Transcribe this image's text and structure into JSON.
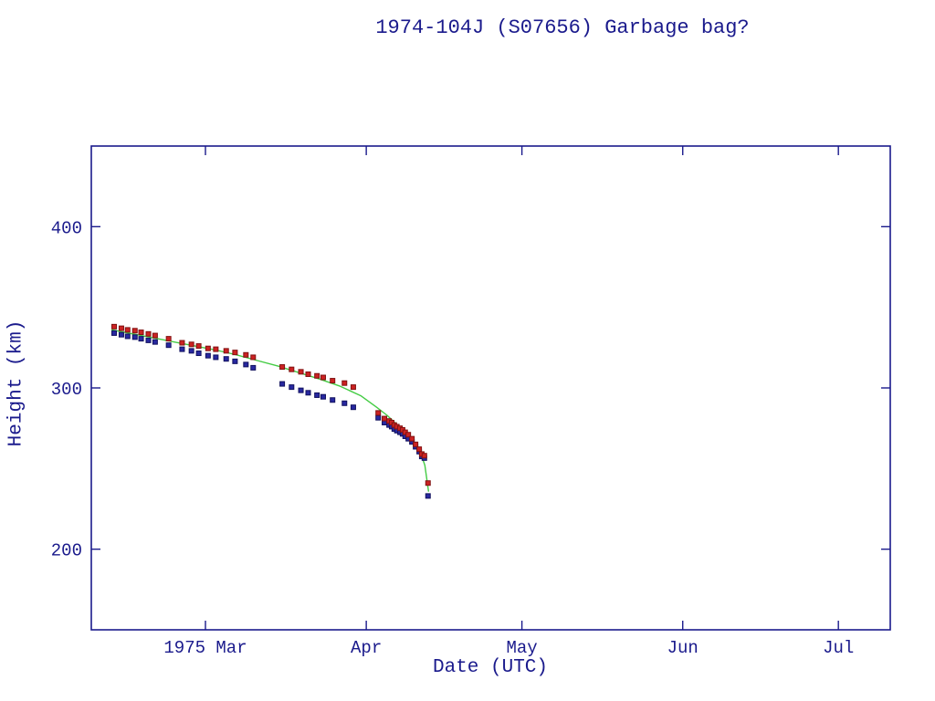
{
  "chart_data": {
    "type": "scatter",
    "title": "1974-104J (S07656) Garbage bag?",
    "xlabel": "Date (UTC)",
    "ylabel": "Height (km)",
    "x_unit": "days since 1975-02-07",
    "x_domain": [
      0,
      154
    ],
    "y_domain": [
      150,
      450
    ],
    "grid": false,
    "legend": "none",
    "x_ticks": [
      {
        "day": 22,
        "label": "1975 Mar"
      },
      {
        "day": 53,
        "label": "Apr"
      },
      {
        "day": 83,
        "label": "May"
      },
      {
        "day": 114,
        "label": "Jun"
      },
      {
        "day": 144,
        "label": "Jul"
      }
    ],
    "y_ticks": [
      {
        "value": 200,
        "label": "200"
      },
      {
        "value": 300,
        "label": "300"
      },
      {
        "value": 400,
        "label": "400"
      }
    ],
    "colors": {
      "axis_and_text": "#1a1a8c",
      "background": "#ffffff",
      "apogee": "#cc2222",
      "perigee": "#2828a0",
      "fit_line": "#44cc44"
    },
    "series": [
      {
        "name": "fit-line",
        "type": "line",
        "color": "#44cc44",
        "points": [
          [
            4.0,
            336
          ],
          [
            8,
            333.5
          ],
          [
            12,
            331
          ],
          [
            16,
            328.5
          ],
          [
            20,
            326
          ],
          [
            24,
            323.5
          ],
          [
            28,
            320.5
          ],
          [
            32,
            317
          ],
          [
            36,
            313.5
          ],
          [
            40,
            309.5
          ],
          [
            44,
            305.5
          ],
          [
            48,
            301
          ],
          [
            52,
            295
          ],
          [
            55,
            288
          ],
          [
            57,
            283
          ],
          [
            58.5,
            278.5
          ],
          [
            60,
            274
          ],
          [
            61.5,
            269
          ],
          [
            62.5,
            265
          ],
          [
            63.5,
            259.5
          ],
          [
            64.3,
            252
          ],
          [
            65.0,
            236
          ]
        ]
      },
      {
        "name": "perigee-height",
        "type": "scatter",
        "marker": "square",
        "color": "#2828a0",
        "edge_color": "#11115e",
        "points": [
          [
            4.4,
            334
          ],
          [
            5.8,
            333
          ],
          [
            7.0,
            332
          ],
          [
            8.4,
            331.5
          ],
          [
            9.6,
            330.5
          ],
          [
            11.0,
            329.5
          ],
          [
            12.3,
            328.5
          ],
          [
            14.9,
            326.5
          ],
          [
            17.5,
            324
          ],
          [
            19.3,
            323
          ],
          [
            20.7,
            321.5
          ],
          [
            22.5,
            320
          ],
          [
            24.0,
            319
          ],
          [
            26.0,
            318
          ],
          [
            27.7,
            316.5
          ],
          [
            29.8,
            314.5
          ],
          [
            31.2,
            312.5
          ],
          [
            36.8,
            302.5
          ],
          [
            38.6,
            300.5
          ],
          [
            40.4,
            298.5
          ],
          [
            41.8,
            297
          ],
          [
            43.5,
            295.5
          ],
          [
            44.7,
            294.5
          ],
          [
            46.5,
            292.5
          ],
          [
            48.8,
            290.5
          ],
          [
            50.5,
            288
          ],
          [
            55.3,
            281.5
          ],
          [
            56.5,
            278.5
          ],
          [
            57.4,
            277
          ],
          [
            57.9,
            276
          ],
          [
            58.4,
            274.5
          ],
          [
            58.9,
            273.5
          ],
          [
            59.5,
            272.5
          ],
          [
            60.0,
            271.5
          ],
          [
            60.5,
            270
          ],
          [
            61.1,
            268.5
          ],
          [
            61.8,
            266.5
          ],
          [
            62.5,
            263.5
          ],
          [
            63.2,
            260.5
          ],
          [
            63.7,
            257.5
          ],
          [
            64.2,
            256.5
          ],
          [
            64.9,
            233
          ]
        ]
      },
      {
        "name": "apogee-height",
        "type": "scatter",
        "marker": "square",
        "color": "#cc2222",
        "edge_color": "#801212",
        "points": [
          [
            4.4,
            338
          ],
          [
            5.8,
            337
          ],
          [
            7.0,
            336
          ],
          [
            8.4,
            335.5
          ],
          [
            9.6,
            334.5
          ],
          [
            11.0,
            333.5
          ],
          [
            12.3,
            332.5
          ],
          [
            14.9,
            330.5
          ],
          [
            17.5,
            328
          ],
          [
            19.3,
            327
          ],
          [
            20.7,
            326
          ],
          [
            22.5,
            324.5
          ],
          [
            24.0,
            324
          ],
          [
            26.0,
            323
          ],
          [
            27.7,
            322
          ],
          [
            29.8,
            320.5
          ],
          [
            31.2,
            319
          ],
          [
            36.8,
            313
          ],
          [
            38.6,
            311.5
          ],
          [
            40.4,
            310
          ],
          [
            41.8,
            308.5
          ],
          [
            43.5,
            307.5
          ],
          [
            44.7,
            306.5
          ],
          [
            46.5,
            304.5
          ],
          [
            48.8,
            303
          ],
          [
            50.5,
            300.5
          ],
          [
            55.3,
            284.5
          ],
          [
            56.5,
            281
          ],
          [
            57.4,
            279.5
          ],
          [
            57.9,
            278.5
          ],
          [
            58.4,
            277
          ],
          [
            58.9,
            276
          ],
          [
            59.5,
            275
          ],
          [
            60.0,
            274
          ],
          [
            60.5,
            272.5
          ],
          [
            61.1,
            271
          ],
          [
            61.8,
            268.5
          ],
          [
            62.5,
            265
          ],
          [
            63.2,
            262
          ],
          [
            63.7,
            259
          ],
          [
            64.2,
            258
          ],
          [
            64.9,
            241
          ]
        ]
      }
    ]
  }
}
